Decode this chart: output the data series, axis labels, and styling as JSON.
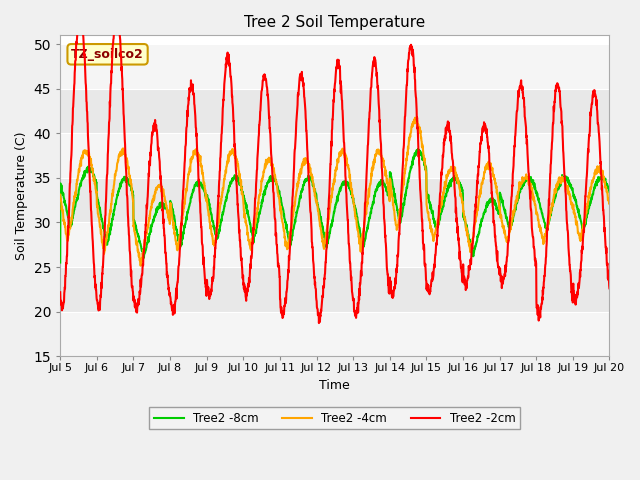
{
  "title": "Tree 2 Soil Temperature",
  "ylabel": "Soil Temperature (C)",
  "xlabel": "Time",
  "ylim": [
    15,
    51
  ],
  "yticks": [
    15,
    20,
    25,
    30,
    35,
    40,
    45,
    50
  ],
  "annotation_text": "TZ_soilco2",
  "legend": [
    "Tree2 -2cm",
    "Tree2 -4cm",
    "Tree2 -8cm"
  ],
  "colors": [
    "#ff0000",
    "#ffa500",
    "#00cc00"
  ],
  "bg_color": "#f0f0f0",
  "band_colors_light": "#e8e8e8",
  "band_colors_dark": "#d0d0d0",
  "xtick_labels": [
    "Jul 5",
    "Jul 6",
    "Jul 7",
    "Jul 8",
    "Jul 9",
    "Jul 10",
    "Jul 11",
    "Jul 12",
    "Jul 13",
    "Jul 14",
    "Jul 15",
    "Jul 16",
    "Jul 17",
    "Jul 18",
    "Jul 19",
    "Jul 20"
  ],
  "n_days": 15,
  "figsize": [
    6.4,
    4.8
  ],
  "dpi": 100
}
